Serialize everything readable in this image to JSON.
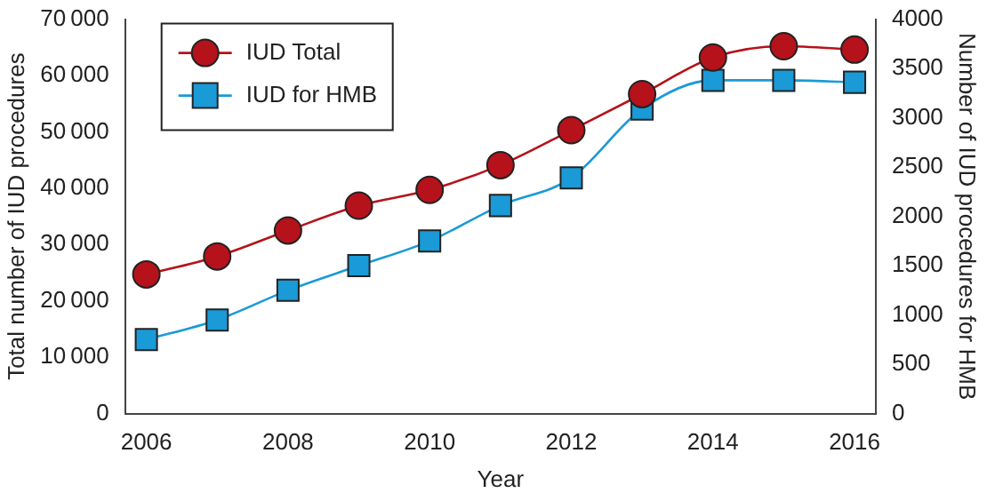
{
  "chart_data": {
    "type": "line",
    "xlabel": "Year",
    "ylabel": "Total number of IUD procedures",
    "y2label": "Number of IUD procedures for HMB",
    "x": [
      2006,
      2007,
      2008,
      2009,
      2010,
      2011,
      2012,
      2013,
      2014,
      2015,
      2016
    ],
    "xlim": [
      2005.7,
      2016.3
    ],
    "xticks": [
      2006,
      2008,
      2010,
      2012,
      2014,
      2016
    ],
    "ylim": [
      0,
      70000
    ],
    "yticks": [
      0,
      10000,
      20000,
      30000,
      40000,
      50000,
      60000,
      70000
    ],
    "y2lim": [
      0,
      4000
    ],
    "y2ticks": [
      0,
      500,
      1000,
      1500,
      2000,
      2500,
      3000,
      3500,
      4000
    ],
    "series": [
      {
        "name": "IUD Total",
        "color": "#b5121b",
        "marker": "circle",
        "values": [
          24700,
          27900,
          32500,
          36900,
          39700,
          44100,
          50300,
          56700,
          63200,
          65200,
          64600
        ]
      },
      {
        "name": "IUD for HMB",
        "color": "#1a9ad6",
        "marker": "square",
        "axis": "y2",
        "values": [
          750,
          950,
          1250,
          1500,
          1750,
          2110,
          2390,
          3090,
          3380,
          3380,
          3360
        ]
      }
    ],
    "legend": "top left",
    "grid": false
  }
}
